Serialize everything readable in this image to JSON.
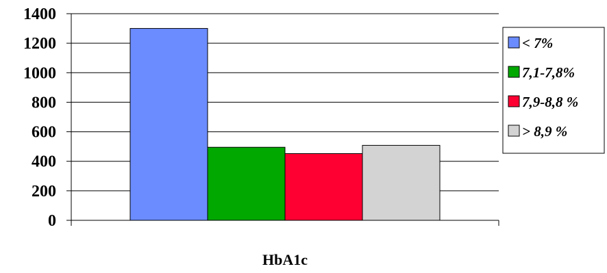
{
  "chart_data": {
    "type": "bar",
    "categories": [
      "HbA1c"
    ],
    "series": [
      {
        "name": "< 7%",
        "values": [
          1300
        ],
        "color": "#6B8CFF"
      },
      {
        "name": "7,1-7,8%",
        "values": [
          495
        ],
        "color": "#00A800"
      },
      {
        "name": "7,9-8,8 %",
        "values": [
          452
        ],
        "color": "#FF0033"
      },
      {
        "name": "> 8,9 %",
        "values": [
          508
        ],
        "color": "#D3D3D3"
      }
    ],
    "title": "",
    "xlabel": "HbA1c",
    "ylabel": "",
    "ylim": [
      0,
      1400
    ],
    "yticks": [
      0,
      200,
      400,
      600,
      800,
      1000,
      1200,
      1400
    ],
    "grid": true,
    "legend_position": "right"
  }
}
